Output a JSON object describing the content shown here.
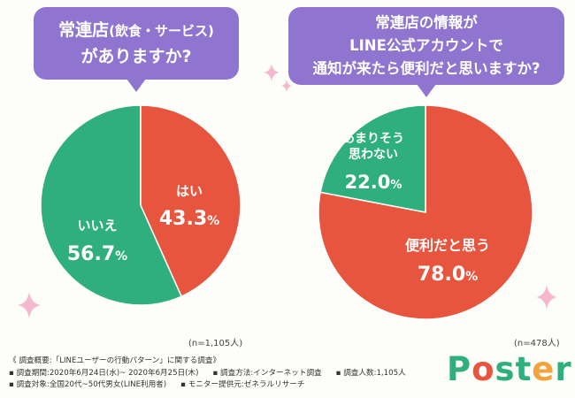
{
  "colors": {
    "green": "#2eaf7d",
    "red": "#e8553f",
    "purple": "#8f75d0",
    "spark": "#f4b8cf"
  },
  "left": {
    "question_line1_main": "常連店",
    "question_line1_sub": "(飲食・サービス)",
    "question_line2": "がありますか?",
    "n_label": "(n=1,105人)"
  },
  "right": {
    "question_line1": "常連店の情報が",
    "question_line2": "LINE公式アカウントで",
    "question_line3": "通知が来たら便利だと思いますか?",
    "n_label": "(n=478人)"
  },
  "chart_data": [
    {
      "type": "pie",
      "title": "常連店(飲食・サービス)がありますか?",
      "slices": [
        {
          "label": "はい",
          "value_main": "43.3",
          "value_unit": "%",
          "value": 43.3,
          "color": "#e8553f"
        },
        {
          "label": "いいえ",
          "value_main": "56.7",
          "value_unit": "%",
          "value": 56.7,
          "color": "#2eaf7d"
        }
      ]
    },
    {
      "type": "pie",
      "title": "常連店の情報がLINE公式アカウントで通知が来たら便利だと思いますか?",
      "slices": [
        {
          "label": "便利だと思う",
          "value_main": "78.0",
          "value_unit": "%",
          "value": 78.0,
          "color": "#e8553f"
        },
        {
          "label_line1": "あまりそう",
          "label_line2": "思わない",
          "value_main": "22.0",
          "value_unit": "%",
          "value": 22.0,
          "color": "#2eaf7d"
        }
      ]
    }
  ],
  "footer": {
    "heading": "《 調査概要:「LINEユーザーの行動パターン」に関する調査》",
    "period": "▪ 調査期間:2020年6月24日(水)~ 2020年6月25日(木)",
    "method": "▪ 調査方法:インターネット調査",
    "count": "▪ 調査人数:1,105人",
    "target": "▪ 調査対象:全国20代~50代男女(LINE利用者)",
    "provider": "▪ モニター提供元:ゼネラルリサーチ"
  },
  "logo": {
    "p": "P",
    "o": "o",
    "s": "s",
    "t": "t",
    "e": "e",
    "r": "r"
  }
}
